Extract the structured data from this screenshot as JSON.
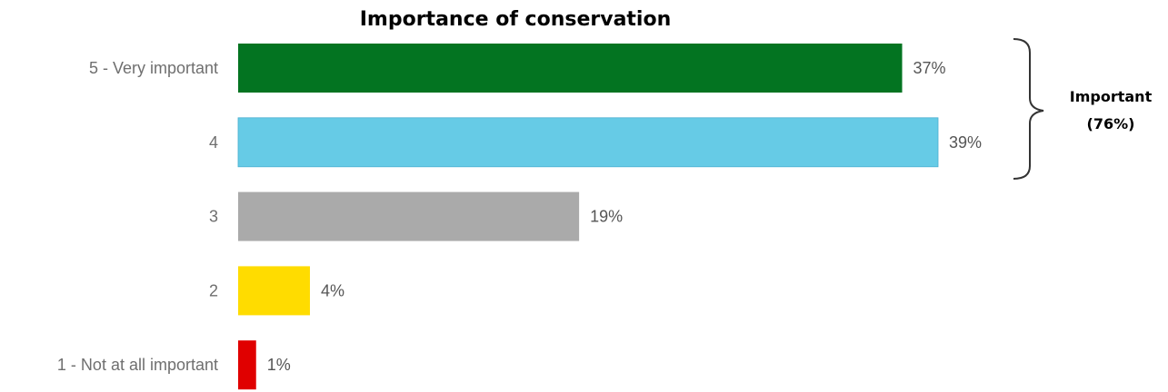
{
  "chart_data": {
    "type": "bar",
    "orientation": "horizontal",
    "title": "Importance of conservation",
    "categories": [
      "5 - Very important",
      "4",
      "3",
      "2",
      "1 - Not at all important"
    ],
    "values": [
      37,
      39,
      19,
      4,
      1
    ],
    "value_labels": [
      "37%",
      "39%",
      "19%",
      "4%",
      "1%"
    ],
    "colors": [
      "#037421",
      "#66cbe6",
      "#aaaaaa",
      "#ffdc00",
      "#e00000"
    ],
    "xlim": [
      0,
      39
    ],
    "grid": false,
    "legend": "none",
    "annotation": {
      "line1": "Important",
      "line2": "(76%)",
      "spans_categories": [
        "5 - Very important",
        "4"
      ]
    }
  }
}
